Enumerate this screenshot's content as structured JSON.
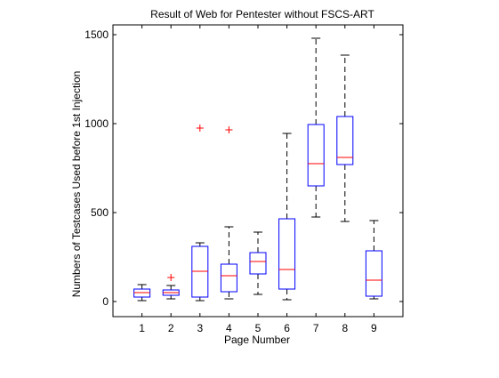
{
  "chart_data": {
    "type": "box",
    "title": "Result of Web for Pentester without FSCS-ART",
    "xlabel": "Page Number",
    "ylabel": "Numbers of Testcases Used before 1st Injection",
    "categories": [
      "1",
      "2",
      "3",
      "4",
      "5",
      "6",
      "7",
      "8",
      "9"
    ],
    "yticks": [
      0,
      500,
      1000,
      1500
    ],
    "ytick_labels": [
      "0",
      "500",
      "1000",
      "1500"
    ],
    "ylim": [
      -85,
      1555
    ],
    "boxes": [
      {
        "category": "1",
        "whisker_low": 5,
        "q1": 25,
        "median": 50,
        "q3": 70,
        "whisker_high": 95,
        "outliers": []
      },
      {
        "category": "2",
        "whisker_low": 15,
        "q1": 35,
        "median": 50,
        "q3": 65,
        "whisker_high": 90,
        "outliers": [
          135
        ]
      },
      {
        "category": "3",
        "whisker_low": 5,
        "q1": 25,
        "median": 170,
        "q3": 310,
        "whisker_high": 330,
        "outliers": [
          975
        ]
      },
      {
        "category": "4",
        "whisker_low": 15,
        "q1": 55,
        "median": 145,
        "q3": 210,
        "whisker_high": 420,
        "outliers": [
          965
        ]
      },
      {
        "category": "5",
        "whisker_low": 40,
        "q1": 155,
        "median": 225,
        "q3": 275,
        "whisker_high": 390,
        "outliers": []
      },
      {
        "category": "6",
        "whisker_low": 10,
        "q1": 70,
        "median": 180,
        "q3": 465,
        "whisker_high": 945,
        "outliers": []
      },
      {
        "category": "7",
        "whisker_low": 475,
        "q1": 650,
        "median": 775,
        "q3": 995,
        "whisker_high": 1480,
        "outliers": []
      },
      {
        "category": "8",
        "whisker_low": 450,
        "q1": 770,
        "median": 810,
        "q3": 1040,
        "whisker_high": 1385,
        "outliers": []
      },
      {
        "category": "9",
        "whisker_low": 15,
        "q1": 30,
        "median": 120,
        "q3": 285,
        "whisker_high": 455,
        "outliers": []
      }
    ],
    "colors": {
      "box": "#0000ff",
      "median": "#ff0000",
      "outlier": "#ff0000",
      "whisker": "#000000",
      "axes": "#000000"
    }
  }
}
